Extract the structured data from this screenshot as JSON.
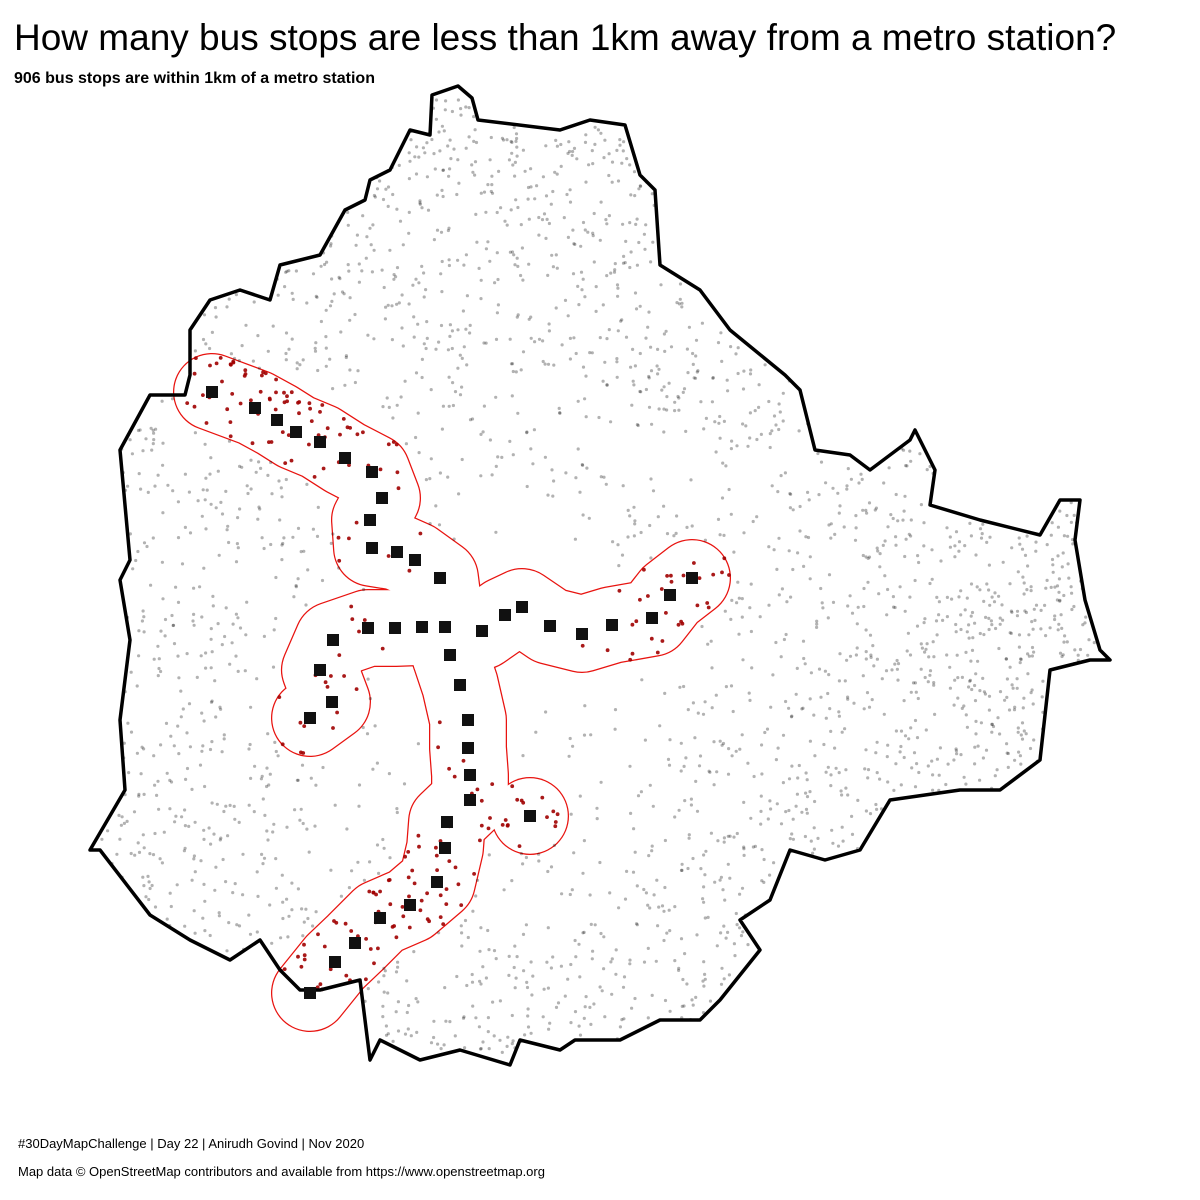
{
  "header": {
    "title": "How many bus stops are less than 1km away from a metro station?",
    "subtitle": "906 bus stops are within 1km of a metro station"
  },
  "footer": {
    "credit": "#30DayMapChallenge | Day 22 | Anirudh Govind | Nov 2020",
    "source": "Map data © OpenStreetMap contributors and available from https://www.openstreetmap.org"
  }
}
